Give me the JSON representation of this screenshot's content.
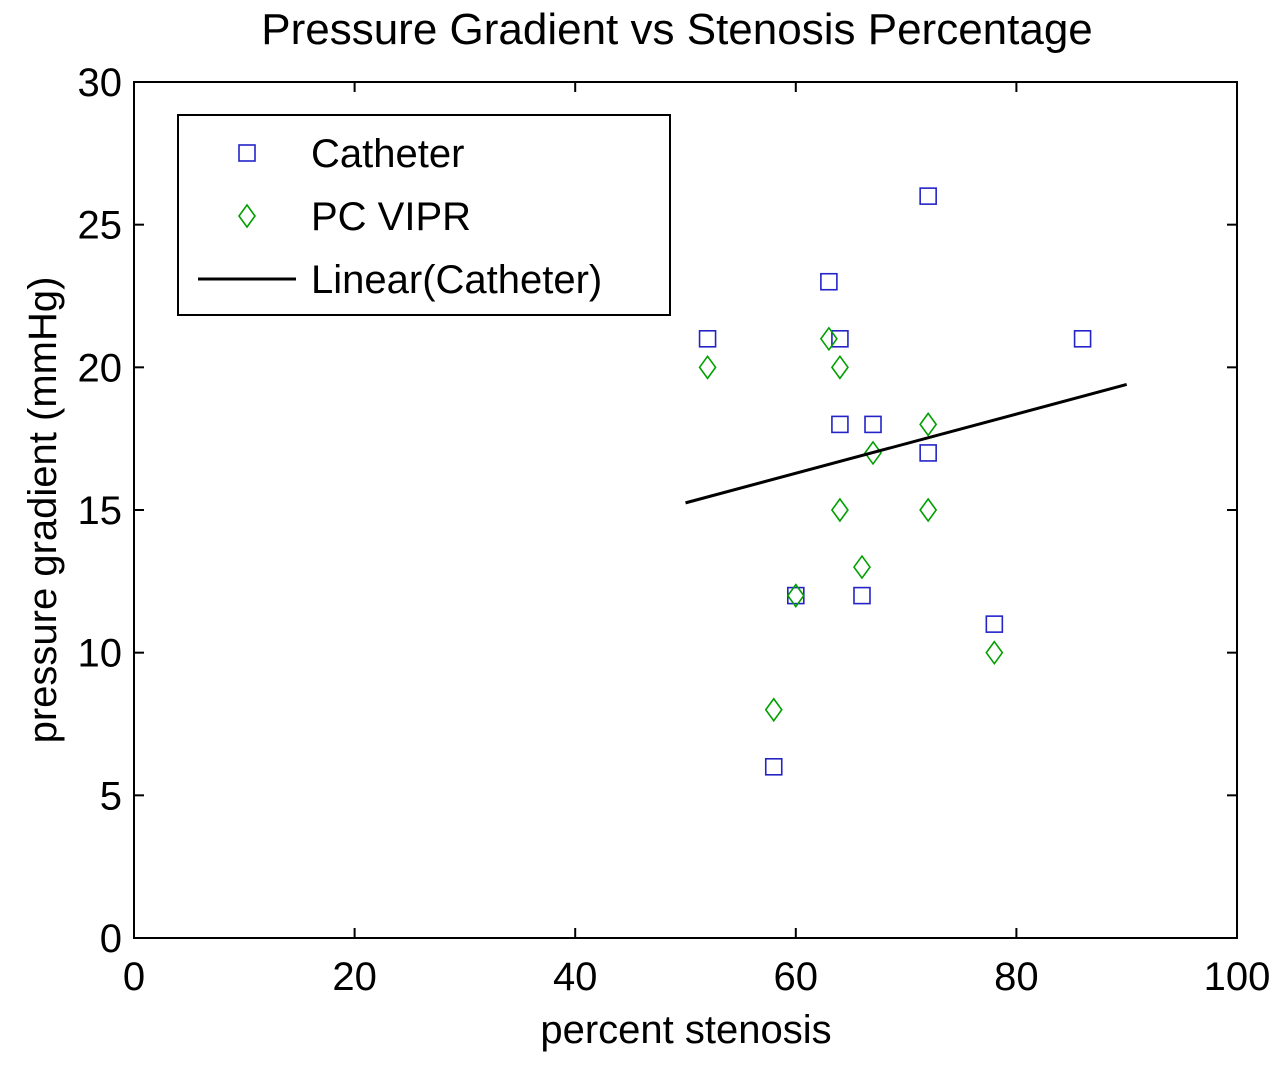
{
  "chart_data": {
    "type": "scatter",
    "title": "Pressure Gradient vs Stenosis Percentage",
    "xlabel": "percent stenosis",
    "ylabel": "pressure gradient (mmHg)",
    "xlim": [
      0,
      100
    ],
    "ylim": [
      0,
      30
    ],
    "xticks": [
      0,
      20,
      40,
      60,
      80,
      100
    ],
    "yticks": [
      0,
      5,
      10,
      15,
      20,
      25,
      30
    ],
    "grid": false,
    "legend_position": "top-left",
    "series": [
      {
        "name": "Catheter",
        "marker": "square",
        "color": "#2323c8",
        "points": [
          {
            "x": 52,
            "y": 21
          },
          {
            "x": 58,
            "y": 6
          },
          {
            "x": 60,
            "y": 12
          },
          {
            "x": 63,
            "y": 23
          },
          {
            "x": 64,
            "y": 21
          },
          {
            "x": 64,
            "y": 18
          },
          {
            "x": 66,
            "y": 12
          },
          {
            "x": 67,
            "y": 18
          },
          {
            "x": 72,
            "y": 26
          },
          {
            "x": 72,
            "y": 17
          },
          {
            "x": 78,
            "y": 11
          },
          {
            "x": 86,
            "y": 21
          }
        ]
      },
      {
        "name": "PC VIPR",
        "marker": "diamond",
        "color": "#00a000",
        "points": [
          {
            "x": 52,
            "y": 20
          },
          {
            "x": 58,
            "y": 8
          },
          {
            "x": 60,
            "y": 12
          },
          {
            "x": 63,
            "y": 21
          },
          {
            "x": 64,
            "y": 20
          },
          {
            "x": 64,
            "y": 15
          },
          {
            "x": 66,
            "y": 13
          },
          {
            "x": 67,
            "y": 17
          },
          {
            "x": 72,
            "y": 18
          },
          {
            "x": 72,
            "y": 15
          },
          {
            "x": 78,
            "y": 10
          }
        ]
      },
      {
        "name": "Linear(Catheter)",
        "marker": "line",
        "color": "#000000",
        "points": [
          {
            "x": 50,
            "y": 15.25
          },
          {
            "x": 90,
            "y": 19.4
          }
        ]
      }
    ]
  }
}
